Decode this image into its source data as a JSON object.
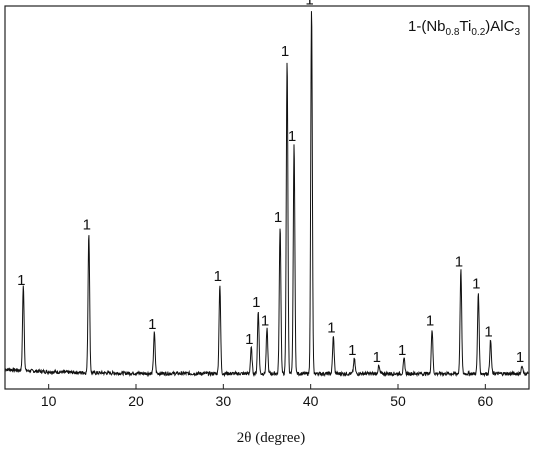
{
  "chart_data": {
    "type": "line",
    "title": "",
    "xlabel": "2θ (degree)",
    "ylabel": "",
    "xlim": [
      5,
      65
    ],
    "ylim": [
      0,
      100
    ],
    "x_ticks": [
      10,
      20,
      30,
      40,
      50,
      60
    ],
    "x_tick_labels": [
      "10",
      "20",
      "30",
      "40",
      "50",
      "60"
    ],
    "legend": {
      "prefix": "1-(Nb",
      "sub1": "0.8",
      "mid": "Ti",
      "sub2": "0.2",
      "suffix": ")AlC",
      "sub3": "3"
    },
    "baseline": 2,
    "series": [
      {
        "name": "1-(Nb0.8Ti0.2)AlC3",
        "peaks": [
          {
            "x": 7.1,
            "y": 23
          },
          {
            "x": 14.6,
            "y": 38
          },
          {
            "x": 22.1,
            "y": 11
          },
          {
            "x": 29.6,
            "y": 24
          },
          {
            "x": 33.2,
            "y": 7
          },
          {
            "x": 34.0,
            "y": 17
          },
          {
            "x": 35.0,
            "y": 12
          },
          {
            "x": 36.5,
            "y": 40
          },
          {
            "x": 37.3,
            "y": 85
          },
          {
            "x": 38.1,
            "y": 62
          },
          {
            "x": 40.1,
            "y": 99
          },
          {
            "x": 42.6,
            "y": 10
          },
          {
            "x": 45.0,
            "y": 4
          },
          {
            "x": 47.8,
            "y": 2
          },
          {
            "x": 50.7,
            "y": 4
          },
          {
            "x": 53.9,
            "y": 12
          },
          {
            "x": 57.2,
            "y": 28
          },
          {
            "x": 59.2,
            "y": 22
          },
          {
            "x": 60.6,
            "y": 9
          },
          {
            "x": 64.2,
            "y": 2
          }
        ]
      }
    ],
    "peak_marker": "1",
    "grid": false
  }
}
